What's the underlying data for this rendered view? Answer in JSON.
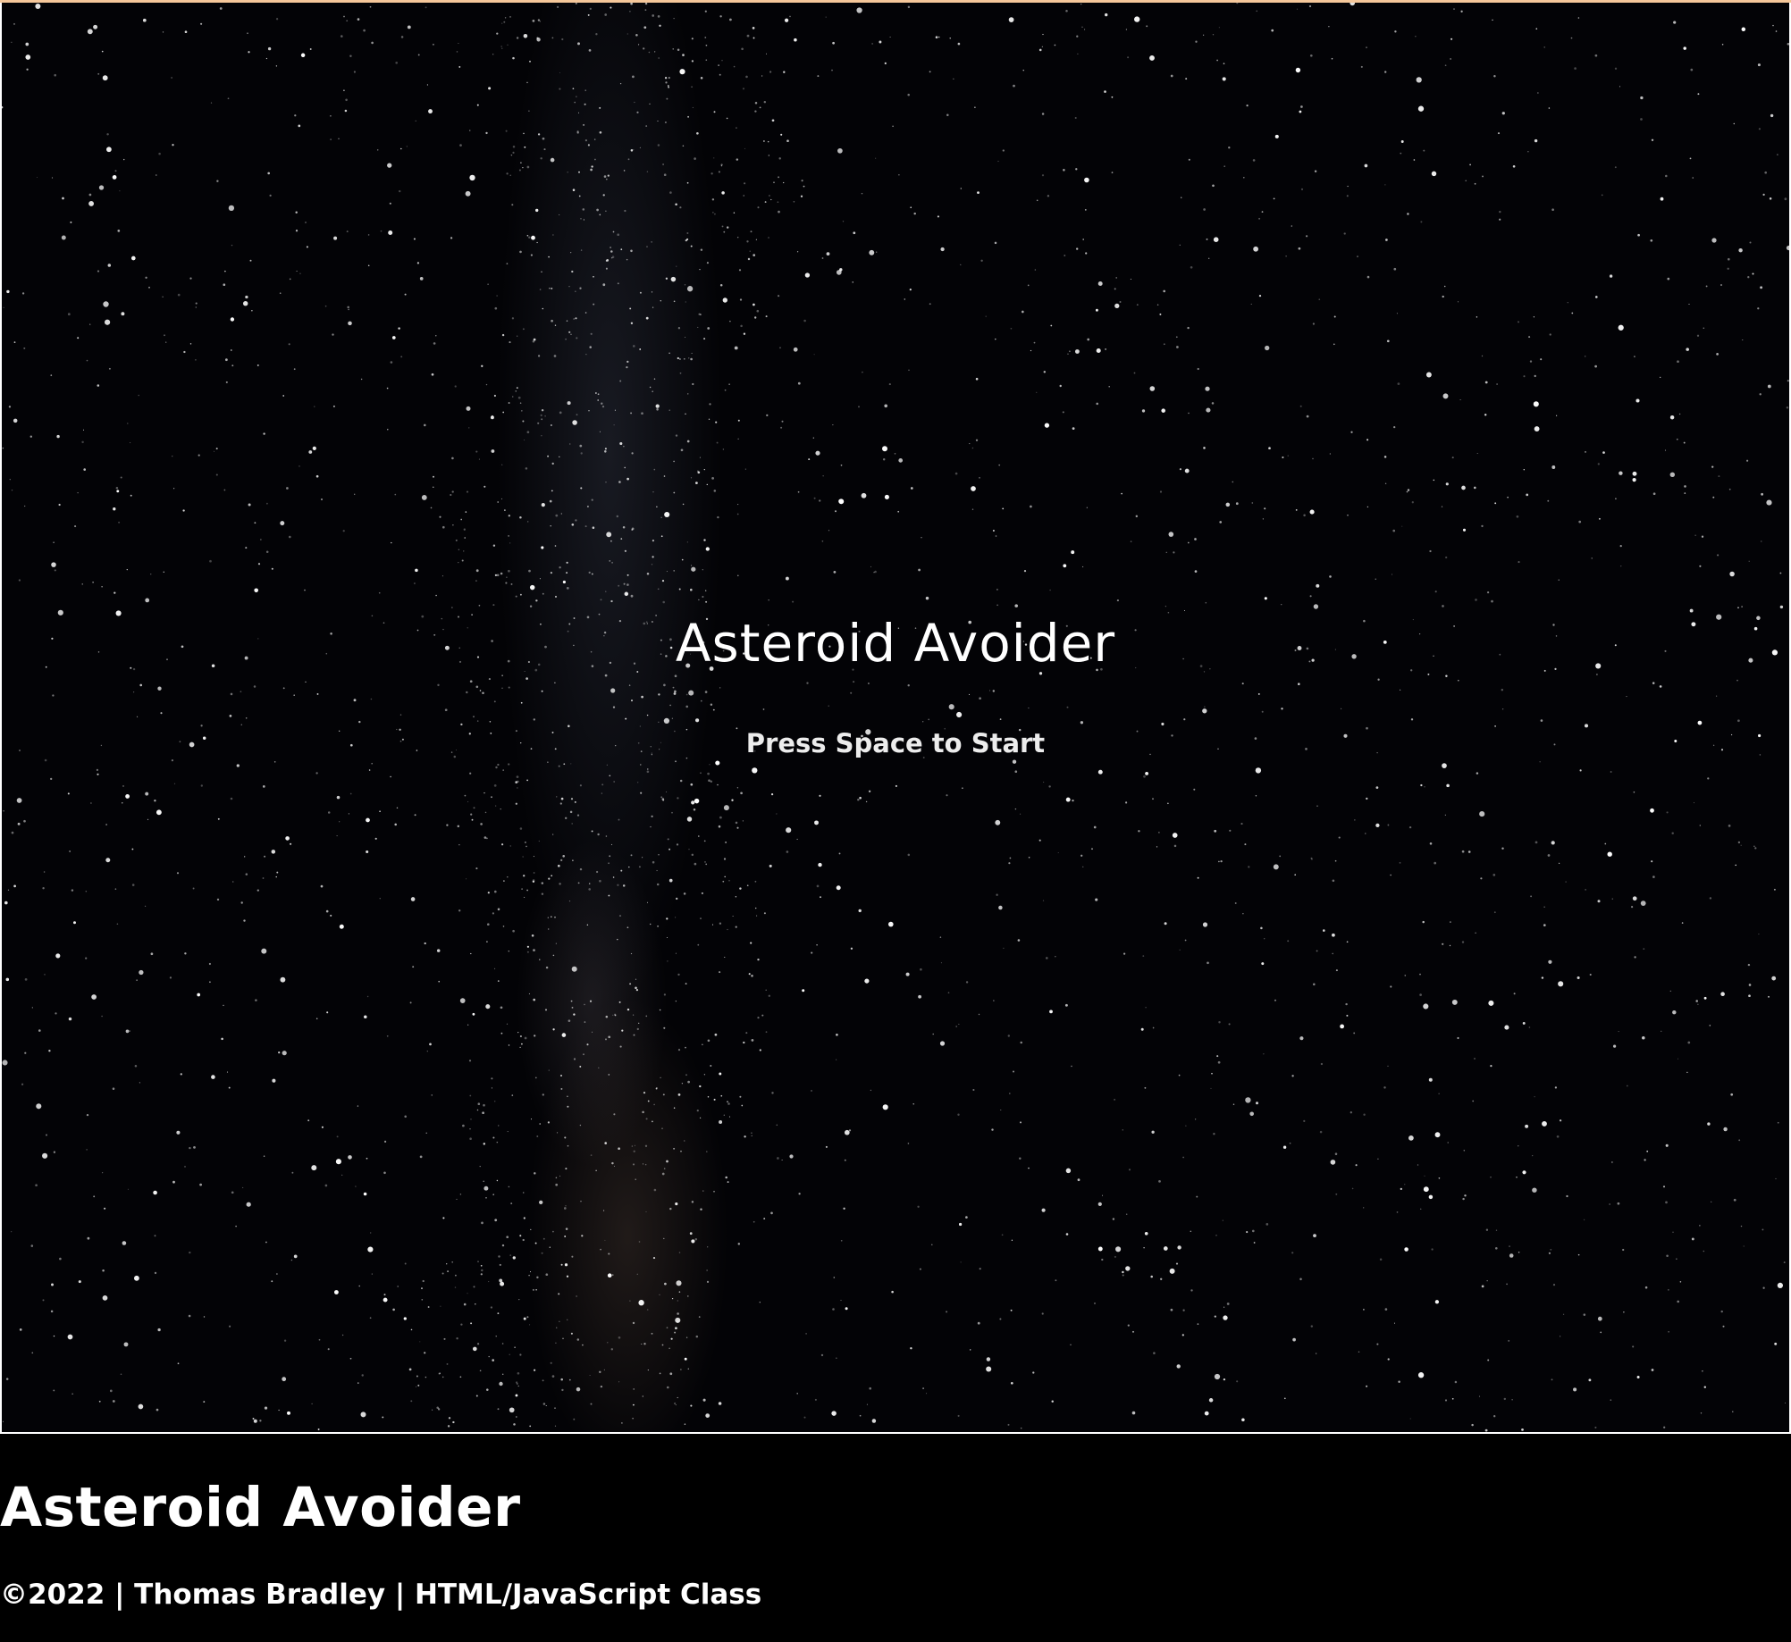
{
  "game": {
    "title": "Asteroid Avoider",
    "prompt": "Press Space to Start"
  },
  "page": {
    "heading": "Asteroid Avoider",
    "footer": "©2022 | Thomas Bradley | HTML/JavaScript Class"
  },
  "colors": {
    "background": "#000000",
    "text": "#ffffff",
    "canvas_border": "#ffffff",
    "top_accent": "#f5c79a"
  }
}
